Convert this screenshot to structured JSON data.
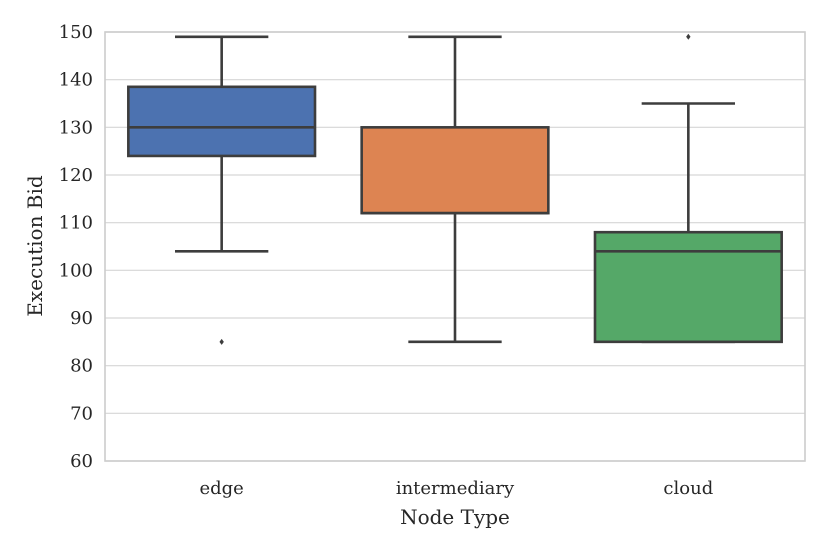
{
  "chart_data": {
    "type": "box",
    "xlabel": "Node Type",
    "ylabel": "Execution Bid",
    "ylim": [
      60,
      150
    ],
    "yticks": [
      60,
      70,
      80,
      90,
      100,
      110,
      120,
      130,
      140,
      150
    ],
    "grid": "horizontal",
    "categories": [
      "edge",
      "intermediary",
      "cloud"
    ],
    "boxes": [
      {
        "category": "edge",
        "whisker_low": 104,
        "q1": 124,
        "median": 130,
        "q3": 138.5,
        "whisker_high": 149,
        "outliers": [
          85
        ],
        "color": "#4C72B0"
      },
      {
        "category": "intermediary",
        "whisker_low": 85,
        "q1": 112,
        "median": 112,
        "q3": 130,
        "whisker_high": 149,
        "outliers": [],
        "color": "#DD8452"
      },
      {
        "category": "cloud",
        "whisker_low": 85,
        "q1": 85,
        "median": 104,
        "q3": 108,
        "whisker_high": 135,
        "outliers": [
          149
        ],
        "color": "#55A868"
      }
    ],
    "line_color": "#3d3d3d"
  }
}
